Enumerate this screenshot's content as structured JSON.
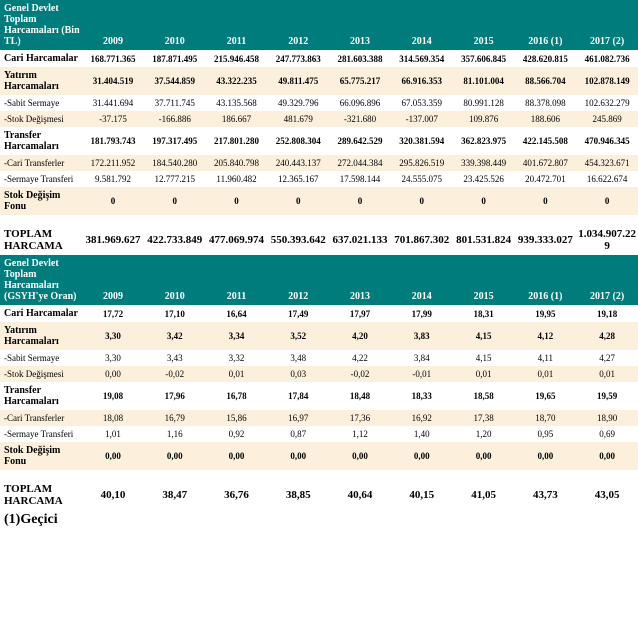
{
  "colors": {
    "header_bg": "#007c7c",
    "header_fg": "#ffffff",
    "band_white": "#ffffff",
    "band_cream": "#fcf0dc",
    "text": "#000000"
  },
  "table1": {
    "header_title": "Genel Devlet Toplam Harcamaları (Bin TL)",
    "years": [
      "2009",
      "2010",
      "2011",
      "2012",
      "2013",
      "2014",
      "2015",
      "2016 (1)",
      "2017 (2)"
    ],
    "rows": [
      {
        "label": "Cari Harcamalar",
        "bold": true,
        "band": "white",
        "vals": [
          "168.771.365",
          "187.871.495",
          "215.946.458",
          "247.773.863",
          "281.603.388",
          "314.569.354",
          "357.606.845",
          "428.620.815",
          "461.082.736"
        ]
      },
      {
        "label": "Yatırım Harcamaları",
        "bold": true,
        "band": "cream",
        "vals": [
          "31.404.519",
          "37.544.859",
          "43.322.235",
          "49.811.475",
          "65.775.217",
          "66.916.353",
          "81.101.004",
          "88.566.704",
          "102.878.149"
        ]
      },
      {
        "label": "-Sabit Sermaye",
        "bold": false,
        "band": "white",
        "vals": [
          "31.441.694",
          "37.711.745",
          "43.135.568",
          "49.329.796",
          "66.096.896",
          "67.053.359",
          "80.991.128",
          "88.378.098",
          "102.632.279"
        ]
      },
      {
        "label": "-Stok Değişmesi",
        "bold": false,
        "band": "cream",
        "vals": [
          "-37.175",
          "-166.886",
          "186.667",
          "481.679",
          "-321.680",
          "-137.007",
          "109.876",
          "188.606",
          "245.869"
        ]
      },
      {
        "label": "Transfer Harcamaları",
        "bold": true,
        "band": "white",
        "vals": [
          "181.793.743",
          "197.317.495",
          "217.801.280",
          "252.808.304",
          "289.642.529",
          "320.381.594",
          "362.823.975",
          "422.145.508",
          "470.946.345"
        ]
      },
      {
        "label": "-Cari Transferler",
        "bold": false,
        "band": "cream",
        "vals": [
          "172.211.952",
          "184.540.280",
          "205.840.798",
          "240.443.137",
          "272.044.384",
          "295.826.519",
          "339.398.449",
          "401.672.807",
          "454.323.671"
        ]
      },
      {
        "label": "-Sermaye Transferi",
        "bold": false,
        "band": "white",
        "vals": [
          "9.581.792",
          "12.777.215",
          "11.960.482",
          "12.365.167",
          "17.598.144",
          "24.555.075",
          "23.425.526",
          "20.472.701",
          "16.622.674"
        ]
      },
      {
        "label": "Stok Değişim Fonu",
        "bold": true,
        "band": "cream",
        "vals": [
          "0",
          "0",
          "0",
          "0",
          "0",
          "0",
          "0",
          "0",
          "0"
        ]
      },
      {
        "label": "spacer",
        "spacer": true,
        "band": "white"
      },
      {
        "label": "TOPLAM HARCAMA",
        "bold": true,
        "band": "white",
        "total": true,
        "vals": [
          "381.969.627",
          "422.733.849",
          "477.069.974",
          "550.393.642",
          "637.021.133",
          "701.867.302",
          "801.531.824",
          "939.333.027",
          "1.034.907.229"
        ]
      }
    ]
  },
  "table2": {
    "header_title": "Genel Devlet Toplam Harcamaları (GSYH'ye Oran)",
    "years": [
      "2009",
      "2010",
      "2011",
      "2012",
      "2013",
      "2014",
      "2015",
      "2016 (1)",
      "2017 (2)"
    ],
    "rows": [
      {
        "label": "Cari Harcamalar",
        "bold": true,
        "band": "white",
        "vals": [
          "17,72",
          "17,10",
          "16,64",
          "17,49",
          "17,97",
          "17,99",
          "18,31",
          "19,95",
          "19,18"
        ]
      },
      {
        "label": "Yatırım Harcamaları",
        "bold": true,
        "band": "cream",
        "vals": [
          "3,30",
          "3,42",
          "3,34",
          "3,52",
          "4,20",
          "3,83",
          "4,15",
          "4,12",
          "4,28"
        ]
      },
      {
        "label": "-Sabit Sermaye",
        "bold": false,
        "band": "white",
        "vals": [
          "3,30",
          "3,43",
          "3,32",
          "3,48",
          "4,22",
          "3,84",
          "4,15",
          "4,11",
          "4,27"
        ]
      },
      {
        "label": "-Stok Değişmesi",
        "bold": false,
        "band": "cream",
        "vals": [
          "0,00",
          "-0,02",
          "0,01",
          "0,03",
          "-0,02",
          "-0,01",
          "0,01",
          "0,01",
          "0,01"
        ]
      },
      {
        "label": "Transfer Harcamaları",
        "bold": true,
        "band": "white",
        "vals": [
          "19,08",
          "17,96",
          "16,78",
          "17,84",
          "18,48",
          "18,33",
          "18,58",
          "19,65",
          "19,59"
        ]
      },
      {
        "label": "-Cari Transferler",
        "bold": false,
        "band": "cream",
        "vals": [
          "18,08",
          "16,79",
          "15,86",
          "16,97",
          "17,36",
          "16,92",
          "17,38",
          "18,70",
          "18,90"
        ]
      },
      {
        "label": "-Sermaye Transferi",
        "bold": false,
        "band": "white",
        "vals": [
          "1,01",
          "1,16",
          "0,92",
          "0,87",
          "1,12",
          "1,40",
          "1,20",
          "0,95",
          "0,69"
        ]
      },
      {
        "label": "Stok Değişim Fonu",
        "bold": true,
        "band": "cream",
        "vals": [
          "0,00",
          "0,00",
          "0,00",
          "0,00",
          "0,00",
          "0,00",
          "0,00",
          "0,00",
          "0,00"
        ]
      },
      {
        "label": "spacer",
        "spacer": true,
        "band": "white"
      },
      {
        "label": "TOPLAM HARCAMA",
        "bold": true,
        "band": "white",
        "total": true,
        "vals": [
          "40,10",
          "38,47",
          "36,76",
          "38,85",
          "40,64",
          "40,15",
          "41,05",
          "43,73",
          "43,05"
        ]
      }
    ]
  },
  "footnote": "(1)Geçici"
}
